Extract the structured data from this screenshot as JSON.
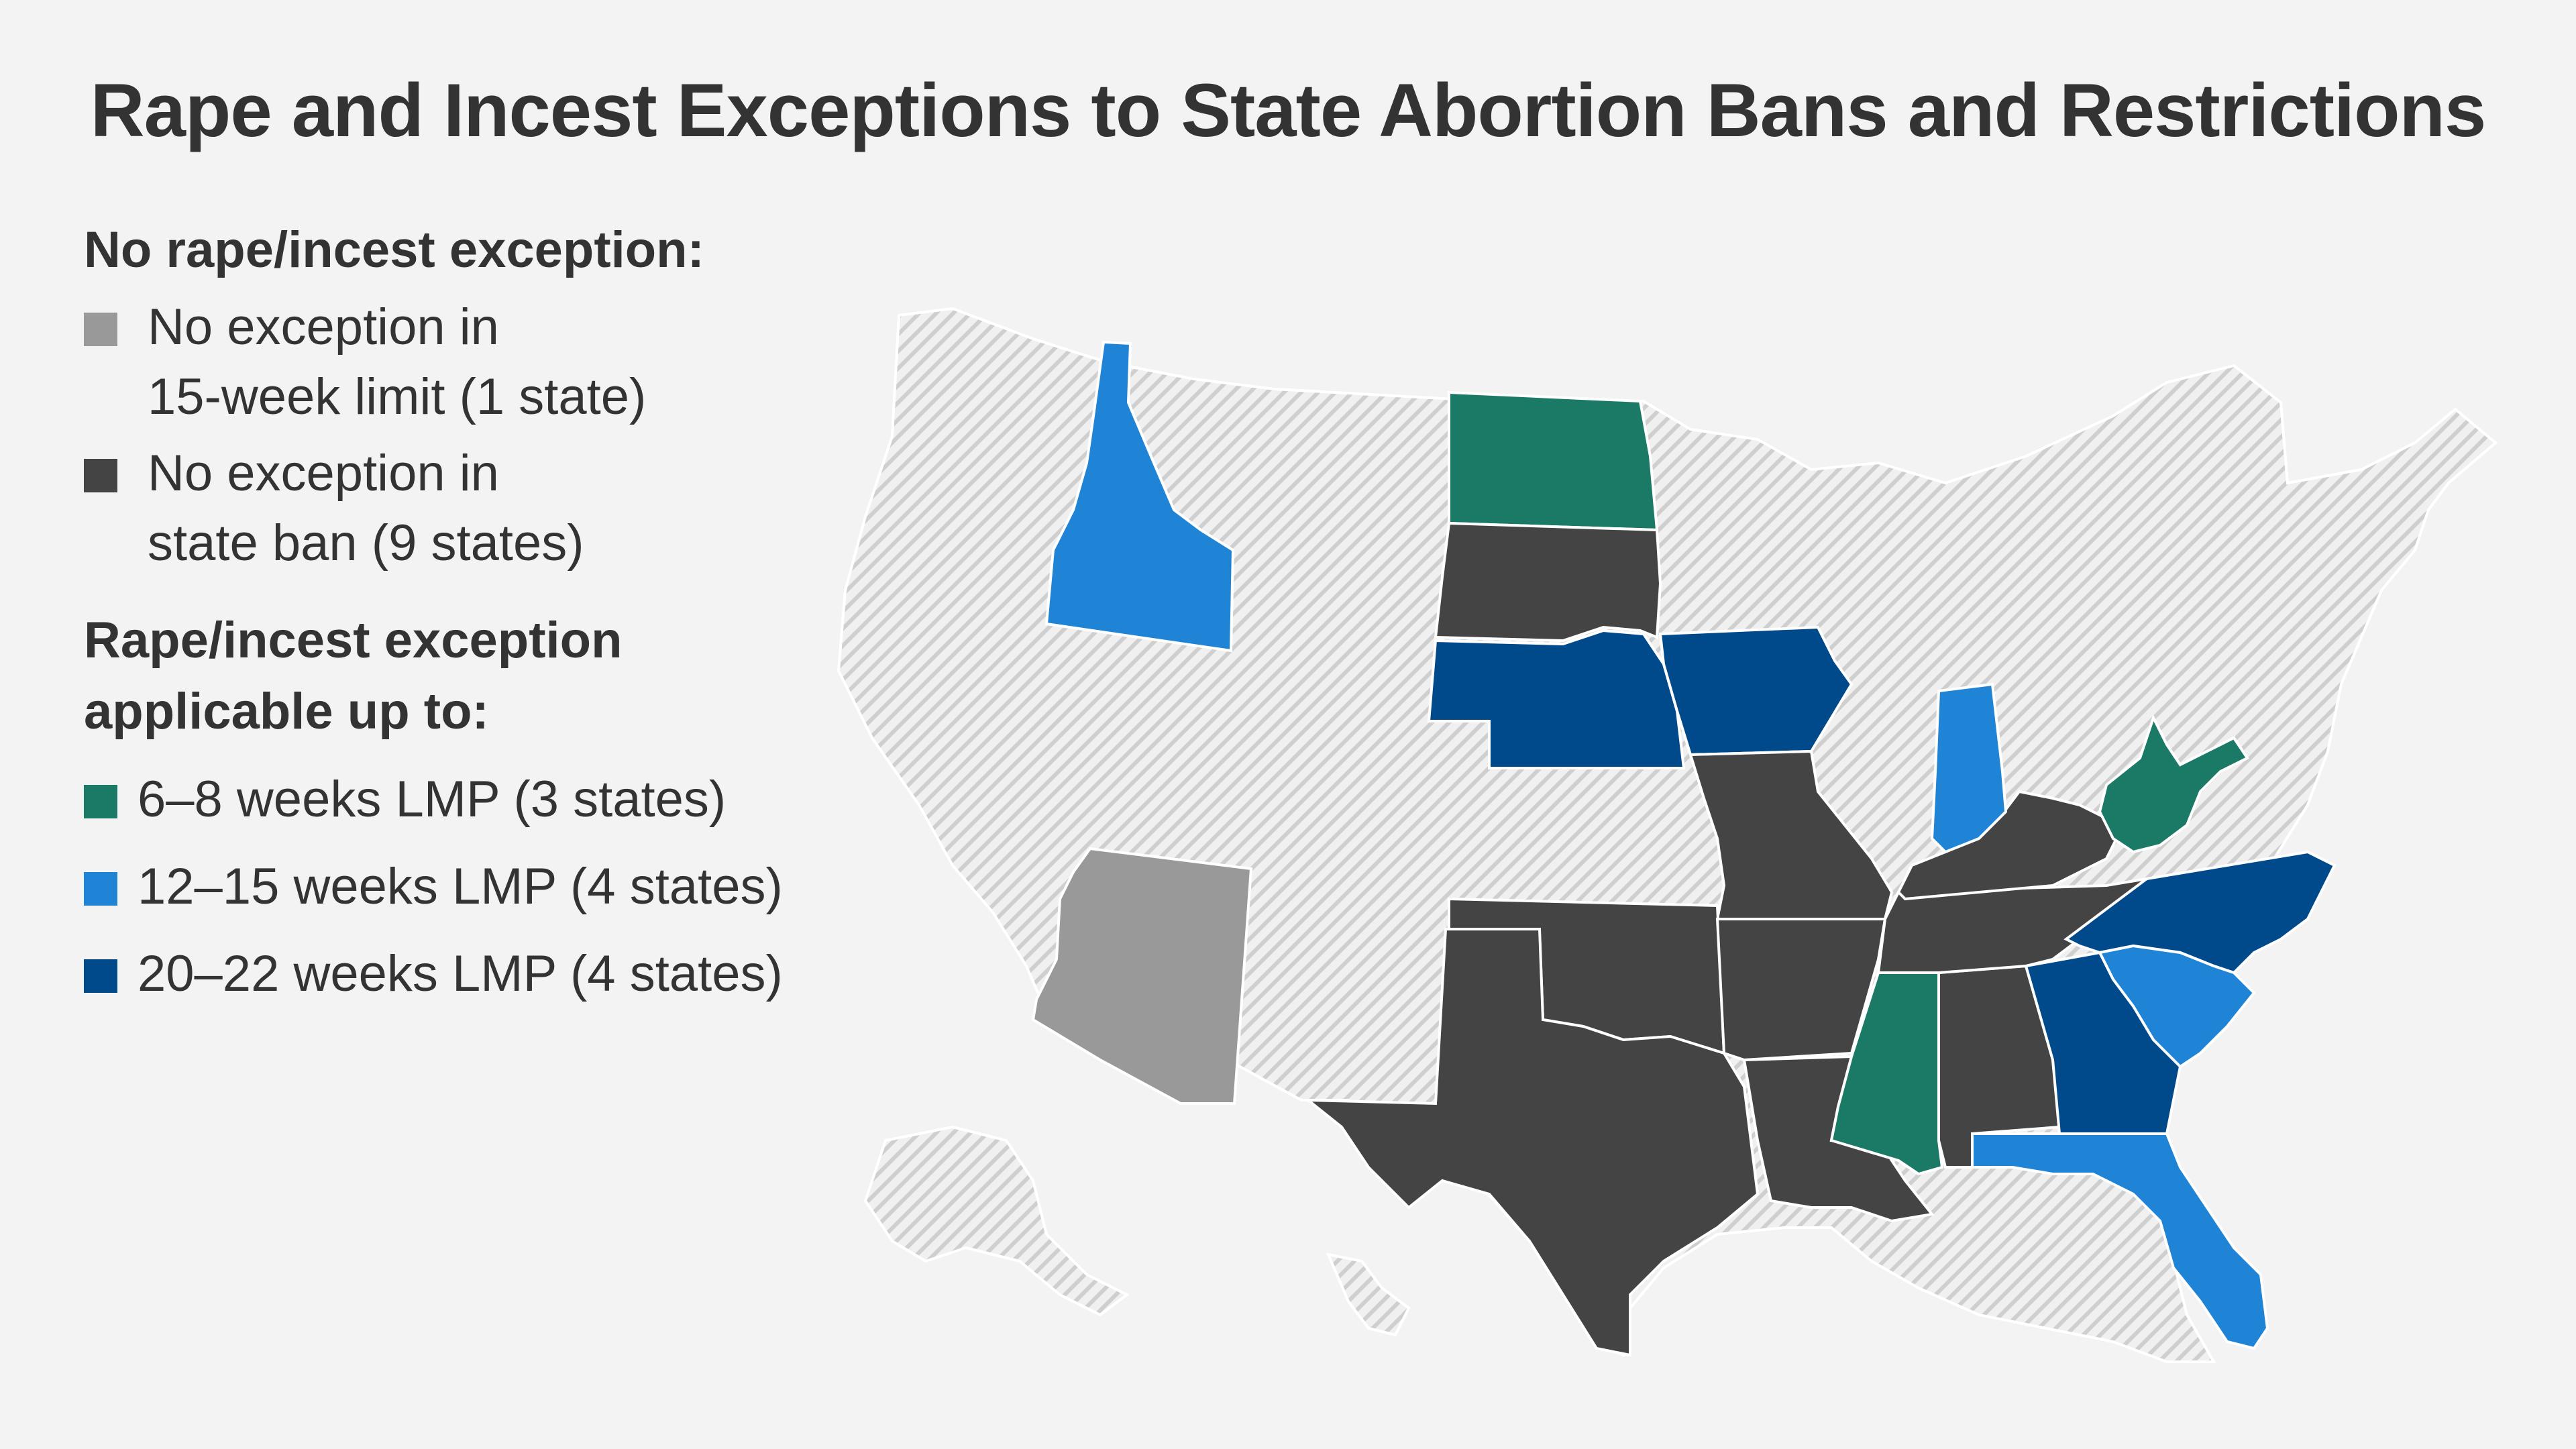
{
  "title": "Rape and Incest Exceptions to State Abortion Bans and Restrictions",
  "legend": {
    "heading_no_exception": "No rape/incest exception:",
    "heading_exception": "Rape/incest exception applicable up to:",
    "items": [
      {
        "key": "no_exception_15_week",
        "line1": "No exception in",
        "line2": "15-week limit (1 state)",
        "color": "#999999"
      },
      {
        "key": "no_exception_ban",
        "line1": "No exception in",
        "line2": "state ban (9 states)",
        "color": "#444444"
      },
      {
        "key": "weeks_6_8",
        "label": "6–8 weeks LMP (3 states)",
        "color": "#1b7a66"
      },
      {
        "key": "weeks_12_15",
        "label": "12–15 weeks LMP (4 states)",
        "color": "#1f84d6"
      },
      {
        "key": "weeks_20_22",
        "label": "20–22 weeks LMP (4 states)",
        "color": "#004a8c"
      }
    ]
  },
  "map": {
    "other_state_color": "#d8d8d8",
    "border_color": "#ffffff",
    "states": [
      {
        "name": "Arizona",
        "category": "no_exception_15_week"
      },
      {
        "name": "South Dakota",
        "category": "no_exception_ban"
      },
      {
        "name": "Missouri",
        "category": "no_exception_ban"
      },
      {
        "name": "Oklahoma",
        "category": "no_exception_ban"
      },
      {
        "name": "Texas",
        "category": "no_exception_ban"
      },
      {
        "name": "Arkansas",
        "category": "no_exception_ban"
      },
      {
        "name": "Louisiana",
        "category": "no_exception_ban"
      },
      {
        "name": "Kentucky",
        "category": "no_exception_ban"
      },
      {
        "name": "Tennessee",
        "category": "no_exception_ban"
      },
      {
        "name": "Alabama",
        "category": "no_exception_ban"
      },
      {
        "name": "North Dakota",
        "category": "weeks_6_8"
      },
      {
        "name": "Mississippi",
        "category": "weeks_6_8"
      },
      {
        "name": "West Virginia",
        "category": "weeks_6_8"
      },
      {
        "name": "Idaho",
        "category": "weeks_12_15"
      },
      {
        "name": "Indiana",
        "category": "weeks_12_15"
      },
      {
        "name": "South Carolina",
        "category": "weeks_12_15"
      },
      {
        "name": "Florida",
        "category": "weeks_12_15"
      },
      {
        "name": "Nebraska",
        "category": "weeks_20_22"
      },
      {
        "name": "Iowa",
        "category": "weeks_20_22"
      },
      {
        "name": "Georgia",
        "category": "weeks_20_22"
      },
      {
        "name": "North Carolina",
        "category": "weeks_20_22"
      }
    ]
  }
}
